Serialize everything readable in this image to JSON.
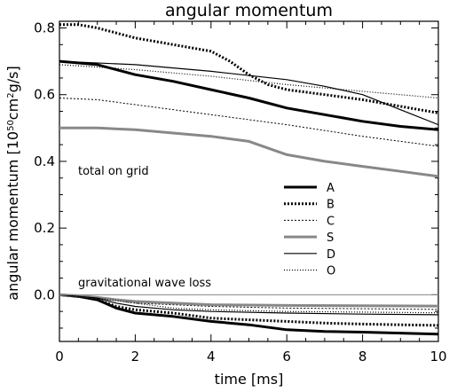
{
  "chart_data": {
    "type": "line",
    "title": "angular momentum",
    "xlabel": "time [ms]",
    "ylabel": "angular momentum",
    "ylabel_units": "[10^50 cm^2 g/s]",
    "xlim": [
      0,
      10
    ],
    "ylim": [
      -0.14,
      0.82
    ],
    "xticks": [
      0,
      2,
      4,
      6,
      8,
      10
    ],
    "xtick_labels": [
      "0",
      "2",
      "4",
      "6",
      "8",
      "10"
    ],
    "yticks": [
      0.0,
      0.2,
      0.4,
      0.6,
      0.8
    ],
    "ytick_labels": [
      "0.0",
      "0.2",
      "0.4",
      "0.6",
      "0.8"
    ],
    "grid": false,
    "legend_position": "center-right",
    "annotations": [
      "total on grid",
      "gravitational wave loss"
    ],
    "series": [
      {
        "name": "A",
        "style": "thick-solid",
        "color": "#000000",
        "group": "total",
        "x": [
          0,
          1,
          2,
          3,
          4,
          5,
          6,
          7,
          8,
          9,
          10
        ],
        "y": [
          0.7,
          0.69,
          0.66,
          0.64,
          0.615,
          0.59,
          0.56,
          0.54,
          0.52,
          0.505,
          0.495
        ]
      },
      {
        "name": "B",
        "style": "thick-dotted",
        "color": "#000000",
        "group": "total",
        "x": [
          0,
          0.5,
          1,
          2,
          3,
          4,
          4.5,
          5,
          5.5,
          6,
          7,
          8,
          9,
          10
        ],
        "y": [
          0.81,
          0.81,
          0.8,
          0.77,
          0.75,
          0.73,
          0.7,
          0.66,
          0.63,
          0.615,
          0.6,
          0.585,
          0.565,
          0.545
        ]
      },
      {
        "name": "C",
        "style": "thin-dashed",
        "color": "#000000",
        "group": "total",
        "x": [
          0,
          1,
          2,
          4,
          6,
          8,
          10
        ],
        "y": [
          0.59,
          0.585,
          0.57,
          0.54,
          0.51,
          0.475,
          0.445
        ]
      },
      {
        "name": "S",
        "style": "thick-solid-gray",
        "color": "#888888",
        "group": "total",
        "x": [
          0,
          1,
          2,
          3,
          4,
          5,
          5.5,
          6,
          7,
          8,
          9,
          10
        ],
        "y": [
          0.5,
          0.5,
          0.495,
          0.485,
          0.475,
          0.46,
          0.44,
          0.42,
          0.4,
          0.385,
          0.37,
          0.355
        ]
      },
      {
        "name": "D",
        "style": "thin-solid",
        "color": "#000000",
        "group": "total",
        "x": [
          0,
          2,
          4,
          6,
          7,
          8,
          9,
          10
        ],
        "y": [
          0.7,
          0.69,
          0.67,
          0.645,
          0.625,
          0.6,
          0.555,
          0.51
        ]
      },
      {
        "name": "O",
        "style": "thin-dotted",
        "color": "#000000",
        "group": "total",
        "x": [
          0,
          2,
          4,
          6,
          8,
          10
        ],
        "y": [
          0.69,
          0.675,
          0.655,
          0.63,
          0.61,
          0.59
        ]
      },
      {
        "name": "A",
        "style": "thick-solid",
        "color": "#000000",
        "group": "gw_loss",
        "x": [
          0,
          0.5,
          1,
          1.5,
          2,
          3,
          4,
          5,
          6,
          7,
          8,
          9,
          10
        ],
        "y": [
          0,
          -0.005,
          -0.015,
          -0.04,
          -0.055,
          -0.065,
          -0.08,
          -0.09,
          -0.105,
          -0.11,
          -0.112,
          -0.115,
          -0.118
        ]
      },
      {
        "name": "B",
        "style": "thick-dotted",
        "color": "#000000",
        "group": "gw_loss",
        "x": [
          0,
          0.5,
          1,
          1.5,
          2,
          3,
          4,
          5,
          6,
          7,
          8,
          9,
          10
        ],
        "y": [
          0,
          -0.005,
          -0.015,
          -0.035,
          -0.045,
          -0.055,
          -0.07,
          -0.075,
          -0.08,
          -0.085,
          -0.088,
          -0.09,
          -0.092
        ]
      },
      {
        "name": "C",
        "style": "thin-dashed",
        "color": "#000000",
        "group": "gw_loss",
        "x": [
          0,
          1,
          2,
          4,
          6,
          8,
          10
        ],
        "y": [
          0,
          -0.01,
          -0.025,
          -0.035,
          -0.04,
          -0.042,
          -0.044
        ]
      },
      {
        "name": "S",
        "style": "thick-solid-gray",
        "color": "#888888",
        "group": "gw_loss",
        "x": [
          0,
          0.5,
          1,
          1.5,
          2,
          3,
          4,
          6,
          8,
          10
        ],
        "y": [
          0,
          -0.003,
          -0.008,
          -0.015,
          -0.02,
          -0.025,
          -0.03,
          -0.032,
          -0.033,
          -0.034
        ]
      },
      {
        "name": "D",
        "style": "thin-solid",
        "color": "#000000",
        "group": "gw_loss",
        "x": [
          0,
          1,
          1.5,
          2,
          3,
          4,
          6,
          8,
          10
        ],
        "y": [
          0,
          -0.01,
          -0.025,
          -0.035,
          -0.045,
          -0.05,
          -0.055,
          -0.058,
          -0.06
        ]
      },
      {
        "name": "O",
        "style": "thin-dotted",
        "color": "#000000",
        "group": "gw_loss",
        "x": [
          0,
          1,
          2,
          3,
          4,
          6,
          8,
          10
        ],
        "y": [
          0,
          -0.01,
          -0.025,
          -0.04,
          -0.045,
          -0.05,
          -0.052,
          -0.054
        ]
      },
      {
        "name": "",
        "style": "zero-line",
        "color": "#888888",
        "group": "reference",
        "x": [
          0,
          10
        ],
        "y": [
          0,
          0
        ]
      }
    ]
  }
}
